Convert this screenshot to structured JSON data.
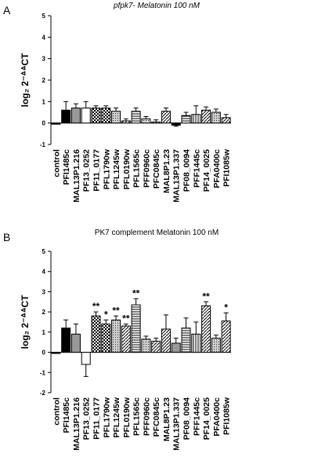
{
  "chart_data": [
    {
      "type": "bar",
      "panel": "A",
      "title": "pfpk7- Melatonin 100 nM",
      "title_italic": true,
      "ylabel": "log₂ 2⁻ᐞᐞCT",
      "categories": [
        "control",
        "PFI1485c",
        "MAL13P1.216",
        "PF13_0252",
        "PF11_0177",
        "PFL1790w",
        "PFL1245w",
        "PFL0190w",
        "PFL1565c",
        "PFF0960c",
        "PFC0845c",
        "MAL8P1.23",
        "MAL13P1.337",
        "PF08_0094",
        "PFF1445c",
        "PF14_0025",
        "PFA0400c",
        "PFI1085w"
      ],
      "values": [
        0,
        0.6,
        0.7,
        0.7,
        0.7,
        0.7,
        0.55,
        0.1,
        0.55,
        0.2,
        0.05,
        0.55,
        -0.1,
        0.35,
        0.4,
        0.6,
        0.5,
        0.25
      ],
      "errors": [
        0,
        0.4,
        0.2,
        0.3,
        0.1,
        0.1,
        0.15,
        0.1,
        0.15,
        0.1,
        0.1,
        0.15,
        0.05,
        0.15,
        0.4,
        0.15,
        0.15,
        0.15
      ],
      "patterns": [
        "black",
        "black",
        "gray",
        "white",
        "check",
        "check",
        "dots",
        "diag",
        "hstripe",
        "dots",
        "diag",
        "diag",
        "black",
        "hstripe",
        "vstripe",
        "diag",
        "dots",
        "diag"
      ],
      "ylim": [
        -1,
        5
      ],
      "yticks": [
        -1,
        0,
        1,
        2,
        3,
        4,
        5
      ]
    },
    {
      "type": "bar",
      "panel": "B",
      "title": "PK7 complement Melatonin 100 nM",
      "title_italic": false,
      "ylabel": "log₂ 2⁻ᐞᐞCT",
      "categories": [
        "control",
        "PFI1485c",
        "MAL13P1.216",
        "PF13_0252",
        "PF11_0177",
        "PFL1790w",
        "PFL1245w",
        "PFL0190w",
        "PFL1565c",
        "PFF0960c",
        "PFC0845c",
        "MAL8P1.23",
        "MAL13P1.337",
        "PF08_0094",
        "PFF1445c",
        "PF14_0025",
        "PFA0400c",
        "PFI1085w"
      ],
      "values": [
        0,
        1.2,
        0.9,
        -0.6,
        1.8,
        1.4,
        1.6,
        1.3,
        2.35,
        0.65,
        0.55,
        1.15,
        0.45,
        1.2,
        0.9,
        2.3,
        0.7,
        1.55
      ],
      "errors": [
        0,
        0.4,
        0.5,
        0.6,
        0.2,
        0.2,
        0.2,
        0.1,
        0.3,
        0.15,
        0.15,
        0.7,
        0.25,
        0.5,
        0.6,
        0.2,
        0.15,
        0.4
      ],
      "annotations": [
        null,
        null,
        null,
        null,
        "**",
        "*",
        "**",
        "**",
        "**",
        null,
        null,
        null,
        null,
        null,
        null,
        "**",
        null,
        "*"
      ],
      "patterns": [
        "black",
        "black",
        "gray",
        "white",
        "check",
        "check",
        "dots",
        "diag",
        "hstripe",
        "dots",
        "diag",
        "diag",
        "gray",
        "hstripe",
        "vstripe",
        "diag",
        "dots",
        "diag"
      ],
      "ylim": [
        -2,
        5
      ],
      "yticks": [
        -2,
        -1,
        0,
        1,
        2,
        3,
        4,
        5
      ]
    }
  ]
}
